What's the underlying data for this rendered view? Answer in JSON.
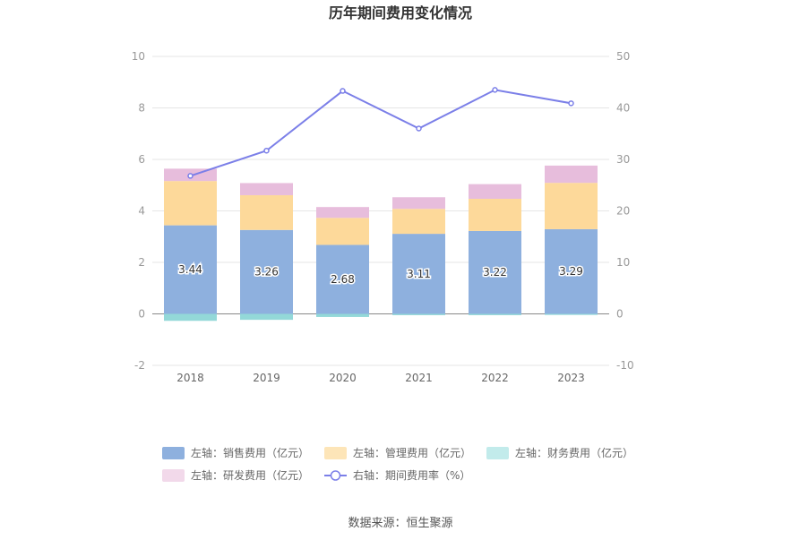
{
  "chart_data": {
    "type": "bar",
    "title": "历年期间费用变化情况",
    "categories": [
      "2018",
      "2019",
      "2020",
      "2021",
      "2022",
      "2023"
    ],
    "left_axis": {
      "min": -2,
      "max": 10,
      "ticks": [
        -2,
        0,
        2,
        4,
        6,
        8,
        10
      ]
    },
    "right_axis": {
      "min": -10,
      "max": 50,
      "ticks": [
        -10,
        0,
        10,
        20,
        30,
        40,
        50
      ]
    },
    "grid": true,
    "legend_position": "bottom",
    "series": [
      {
        "name": "左轴：销售费用（亿元）",
        "type": "bar",
        "axis": "left",
        "color": "#8eb0de",
        "values": [
          3.44,
          3.26,
          2.68,
          3.11,
          3.22,
          3.29
        ],
        "show_labels": true
      },
      {
        "name": "左轴：管理费用（亿元）",
        "type": "bar",
        "axis": "left",
        "color": "#fdd99a",
        "values": [
          1.72,
          1.35,
          1.05,
          0.97,
          1.25,
          1.8
        ]
      },
      {
        "name": "左轴：财务费用（亿元）",
        "type": "bar",
        "axis": "left",
        "color": "#93d8d8",
        "values": [
          -0.27,
          -0.23,
          -0.12,
          -0.05,
          -0.05,
          -0.04
        ]
      },
      {
        "name": "左轴：研发费用（亿元）",
        "type": "bar",
        "axis": "left",
        "color": "#e7bddc",
        "values": [
          0.48,
          0.47,
          0.42,
          0.45,
          0.57,
          0.67
        ]
      },
      {
        "name": "右轴：期间费用率（%）",
        "type": "line",
        "axis": "right",
        "color": "#7b7fe8",
        "values": [
          26.8,
          31.7,
          43.3,
          36.0,
          43.5,
          40.9
        ]
      }
    ],
    "source": "数据来源：恒生聚源"
  },
  "colors": {
    "grid": "#e6e6e6",
    "zero_axis": "#888888",
    "legend_fills": [
      "#8eb0de",
      "#fde5b8",
      "#c2ebeb",
      "#f2d9ea"
    ]
  }
}
